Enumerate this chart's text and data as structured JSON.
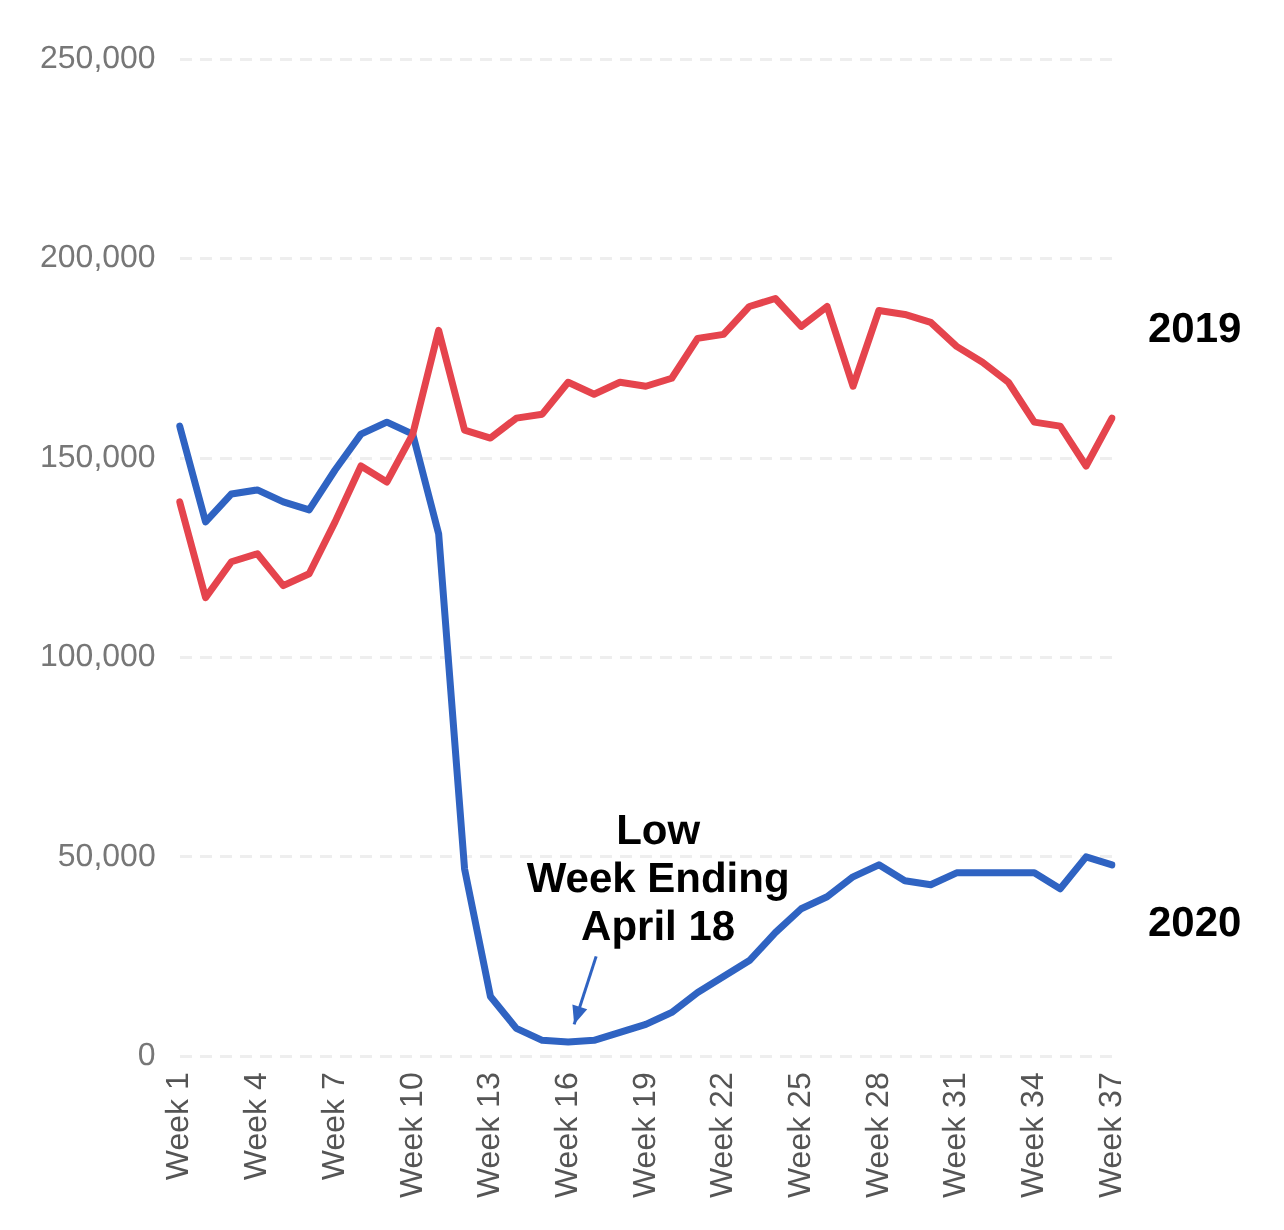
{
  "chart_data": {
    "type": "line",
    "categories": [
      "Week 1",
      null,
      null,
      "Week 4",
      null,
      null,
      "Week 7",
      null,
      null,
      "Week 10",
      null,
      null,
      "Week 13",
      null,
      null,
      "Week 16",
      null,
      null,
      "Week 19",
      null,
      null,
      "Week 22",
      null,
      null,
      "Week 25",
      null,
      null,
      "Week 28",
      null,
      null,
      "Week 31",
      null,
      null,
      "Week 34",
      null,
      null,
      "Week 37"
    ],
    "series": [
      {
        "name": "2019",
        "color": "#e5444d",
        "values": [
          139000,
          115000,
          124000,
          126000,
          118000,
          121000,
          134000,
          148000,
          144000,
          156000,
          182000,
          157000,
          155000,
          160000,
          161000,
          169000,
          166000,
          169000,
          168000,
          170000,
          180000,
          181000,
          188000,
          190000,
          183000,
          188000,
          168000,
          187000,
          186000,
          184000,
          178000,
          174000,
          169000,
          159000,
          158000,
          148000,
          160000
        ]
      },
      {
        "name": "2020",
        "color": "#2f63c2",
        "values": [
          158000,
          134000,
          141000,
          142000,
          139000,
          137000,
          147000,
          156000,
          159000,
          156000,
          131000,
          47000,
          15000,
          7000,
          4000,
          3600,
          4000,
          6000,
          8000,
          11000,
          16000,
          20000,
          24000,
          31000,
          37000,
          40000,
          45000,
          48000,
          44000,
          43000,
          46000,
          46000,
          46000,
          46000,
          42000,
          50000,
          48000
        ]
      }
    ],
    "ylim": [
      0,
      250000
    ],
    "yticks": [
      0,
      {
        "value": 50000,
        "label": "50,000"
      },
      {
        "value": 100000,
        "label": "100,000"
      },
      {
        "value": 150000,
        "label": "150,000"
      },
      {
        "value": 200000,
        "label": "200,000"
      },
      {
        "value": 250000,
        "label": "250,000"
      }
    ],
    "grid": "y",
    "legend": false,
    "marker": "none",
    "line_style": "solid",
    "annotations": [
      {
        "text": "Low\nWeek Ending\nApril 18",
        "x": "Week 16",
        "y": 4000
      }
    ]
  }
}
